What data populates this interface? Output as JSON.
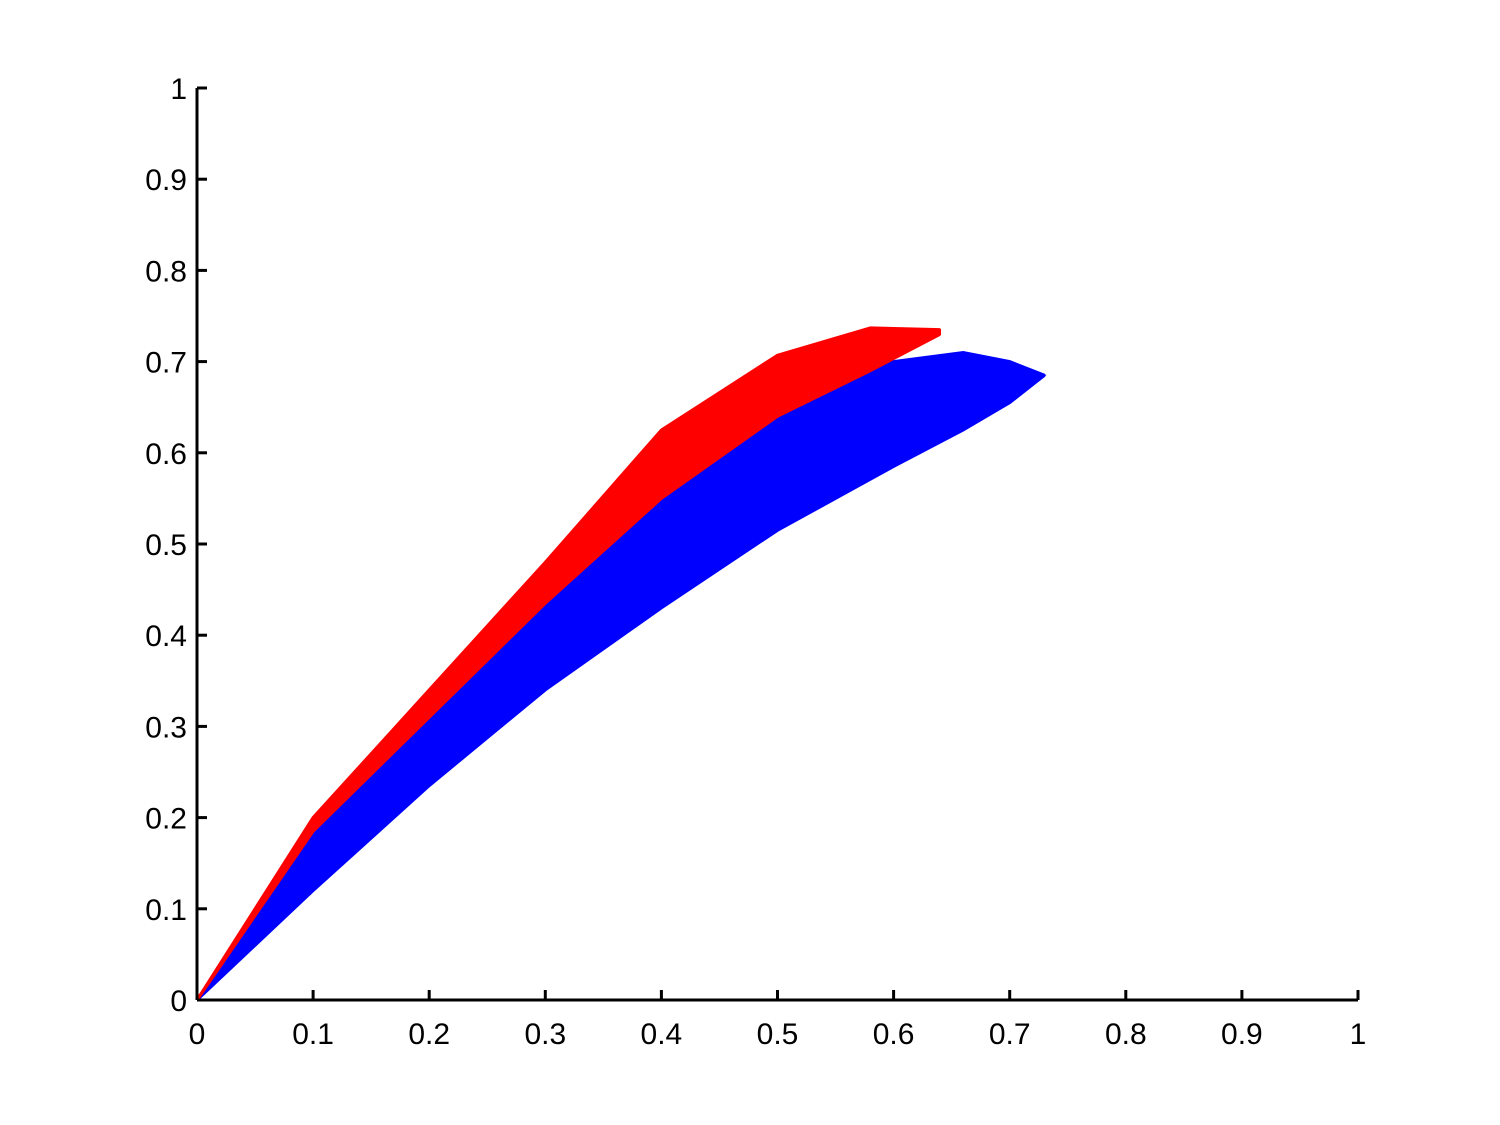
{
  "chart_data": {
    "type": "band",
    "xlim": [
      0,
      1
    ],
    "ylim": [
      0,
      1
    ],
    "xticks": [
      0,
      0.1,
      0.2,
      0.3,
      0.4,
      0.5,
      0.6,
      0.7,
      0.8,
      0.9,
      1
    ],
    "yticks": [
      0,
      0.1,
      0.2,
      0.3,
      0.4,
      0.5,
      0.6,
      0.7,
      0.8,
      0.9,
      1
    ],
    "series": [
      {
        "color": "#0000ff",
        "x": [
          0,
          0.1,
          0.2,
          0.3,
          0.4,
          0.5,
          0.6,
          0.66,
          0.7,
          0.73
        ],
        "upper": [
          0,
          0.185,
          0.31,
          0.435,
          0.55,
          0.64,
          0.7,
          0.71,
          0.7,
          0.685
        ],
        "lower": [
          0,
          0.12,
          0.235,
          0.34,
          0.43,
          0.515,
          0.585,
          0.625,
          0.655,
          0.685
        ]
      },
      {
        "color": "#ff0000",
        "x": [
          0,
          0.1,
          0.2,
          0.3,
          0.4,
          0.5,
          0.58,
          0.64
        ],
        "upper": [
          0,
          0.2,
          0.34,
          0.48,
          0.625,
          0.707,
          0.737,
          0.735
        ],
        "lower": [
          0,
          0.185,
          0.31,
          0.435,
          0.55,
          0.64,
          0.69,
          0.73
        ]
      }
    ]
  }
}
